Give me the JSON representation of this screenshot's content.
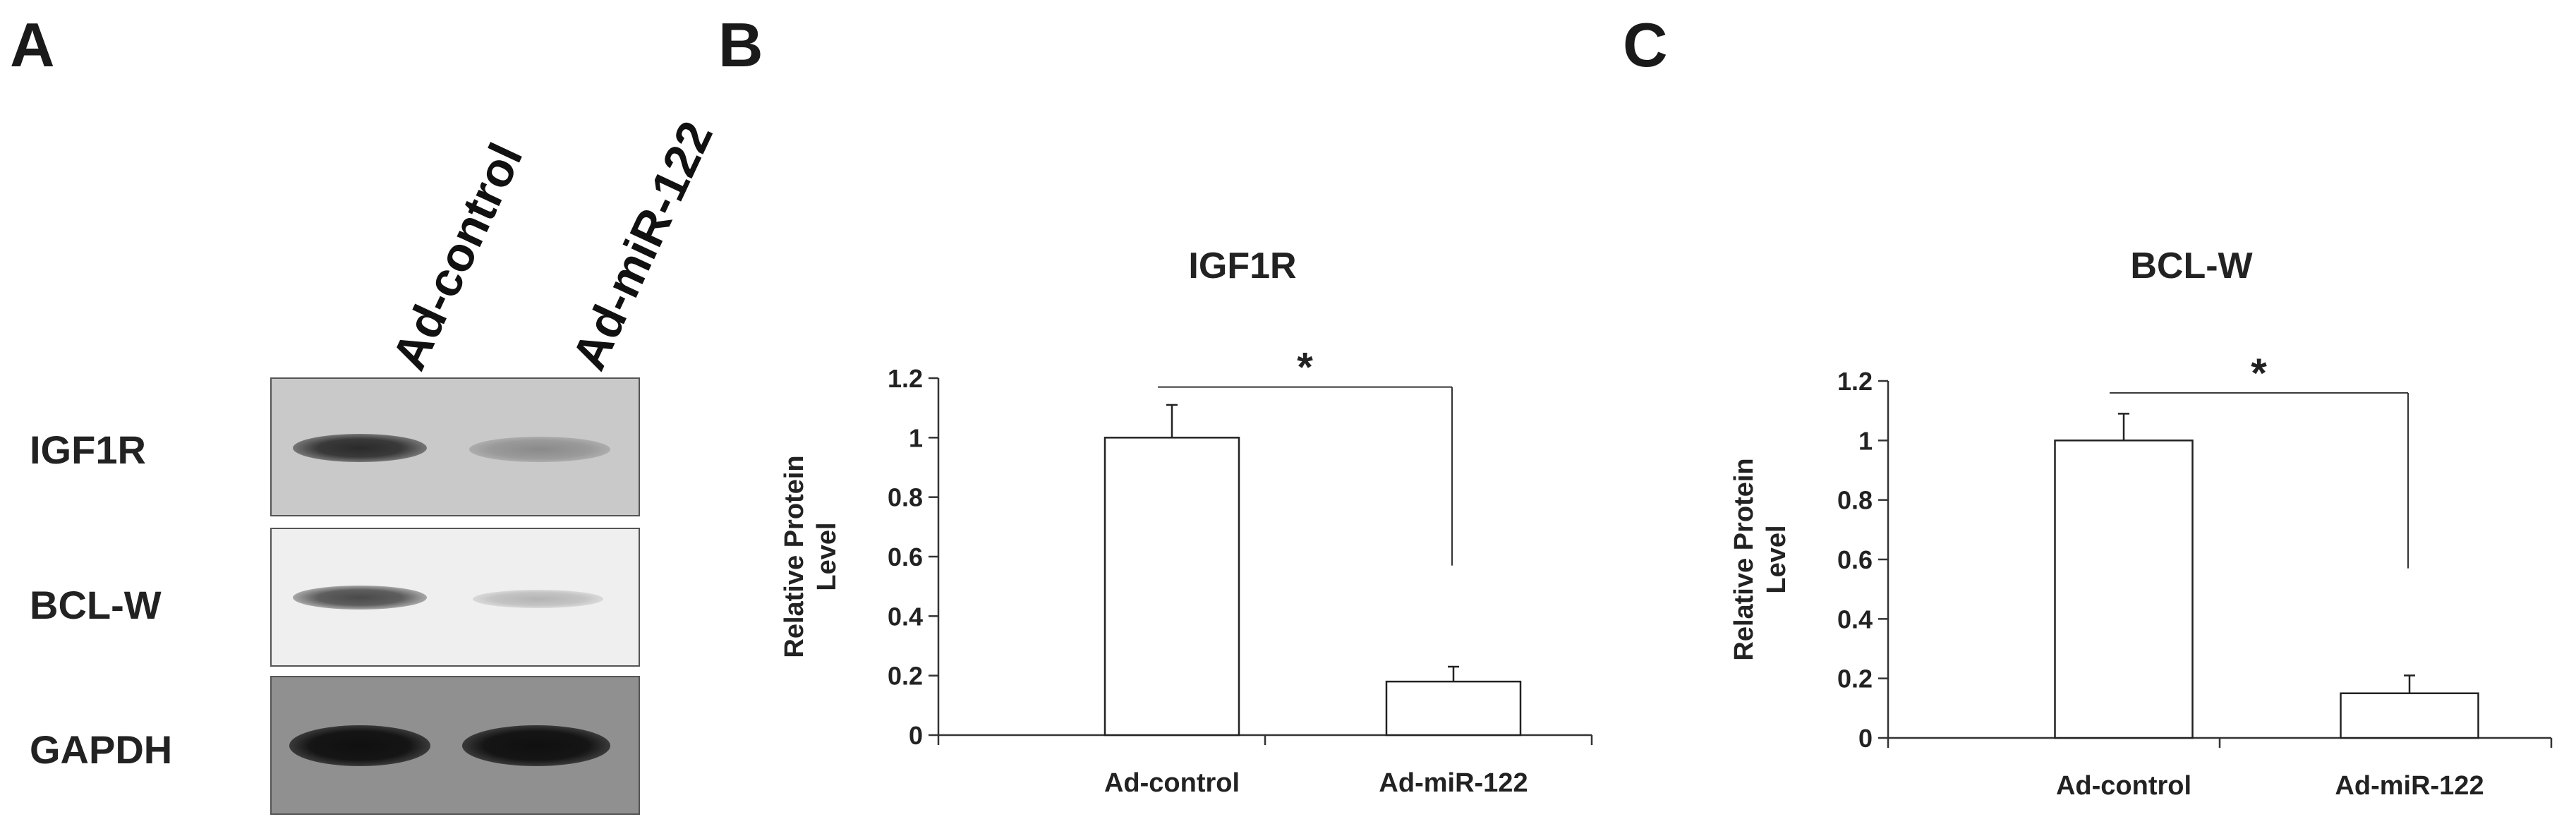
{
  "panel_labels": {
    "a": "A",
    "b": "B",
    "c": "C"
  },
  "blot": {
    "lanes": [
      "Ad-control",
      "Ad-miR-122"
    ],
    "rows": [
      {
        "label": "IGF1R",
        "intensity": [
          0.85,
          0.45
        ]
      },
      {
        "label": "BCL-W",
        "intensity": [
          0.7,
          0.2
        ]
      },
      {
        "label": "GAPDH",
        "intensity": [
          1.0,
          1.0
        ]
      }
    ]
  },
  "chart_data": [
    {
      "type": "bar",
      "title": "IGF1R",
      "ylabel": "Relative Protein Level",
      "xlabel": "",
      "categories": [
        "Ad-control",
        "Ad-miR-122"
      ],
      "values": [
        1.0,
        0.18
      ],
      "errors": [
        0.11,
        0.05
      ],
      "ylim": [
        0,
        1.2
      ],
      "yticks": [
        "0",
        "0.2",
        "0.4",
        "0.6",
        "0.8",
        "1",
        "1.2"
      ],
      "significance": "*"
    },
    {
      "type": "bar",
      "title": "BCL-W",
      "ylabel": "Relative Protein Level",
      "xlabel": "",
      "categories": [
        "Ad-control",
        "Ad-miR-122"
      ],
      "values": [
        1.0,
        0.15
      ],
      "errors": [
        0.09,
        0.06
      ],
      "ylim": [
        0,
        1.2
      ],
      "yticks": [
        "0",
        "0.2",
        "0.4",
        "0.6",
        "0.8",
        "1",
        "1.2"
      ],
      "significance": "*"
    }
  ]
}
